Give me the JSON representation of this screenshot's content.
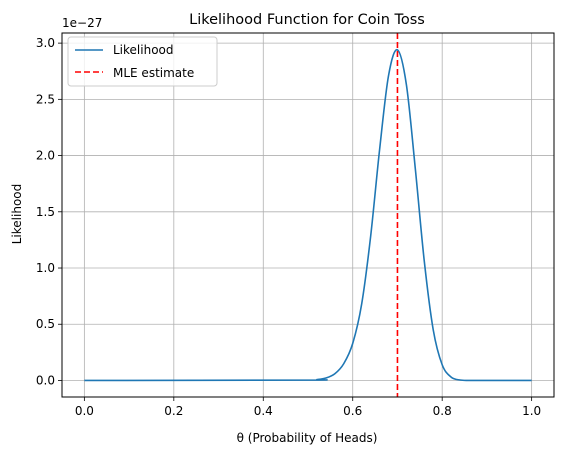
{
  "chart_data": {
    "type": "line",
    "title": "Likelihood Function for Coin Toss",
    "xlabel": "θ (Probability of Heads)",
    "ylabel": "Likelihood",
    "y_scale_offset_label": "1e−27",
    "xlim": [
      -0.05,
      1.05
    ],
    "ylim": [
      -0.147,
      3.09
    ],
    "x_ticks": [
      0.0,
      0.2,
      0.4,
      0.6,
      0.8,
      1.0
    ],
    "x_tick_labels": [
      "0.0",
      "0.2",
      "0.4",
      "0.6",
      "0.8",
      "1.0"
    ],
    "y_ticks": [
      0.0,
      0.5,
      1.0,
      1.5,
      2.0,
      2.5,
      3.0
    ],
    "y_tick_labels": [
      "0.0",
      "0.5",
      "1.0",
      "1.5",
      "2.0",
      "2.5",
      "3.0"
    ],
    "grid": true,
    "legend_position": "top-left",
    "series": [
      {
        "name": "Likelihood",
        "color": "#1f77b4",
        "style": "solid",
        "x": [
          0.0,
          0.5,
          0.52,
          0.54,
          0.56,
          0.58,
          0.6,
          0.62,
          0.64,
          0.66,
          0.68,
          0.7,
          0.72,
          0.74,
          0.76,
          0.78,
          0.8,
          0.82,
          0.84,
          0.86,
          0.88,
          1.0
        ],
        "y": [
          0.0,
          0.003,
          0.008,
          0.022,
          0.06,
          0.15,
          0.33,
          0.68,
          1.28,
          2.05,
          2.71,
          2.94,
          2.63,
          1.88,
          1.06,
          0.45,
          0.14,
          0.03,
          0.004,
          0.0005,
          0.0,
          0.0
        ]
      },
      {
        "name": "MLE estimate",
        "color": "#ff0000",
        "style": "dashed",
        "vline_x": 0.7
      }
    ]
  }
}
